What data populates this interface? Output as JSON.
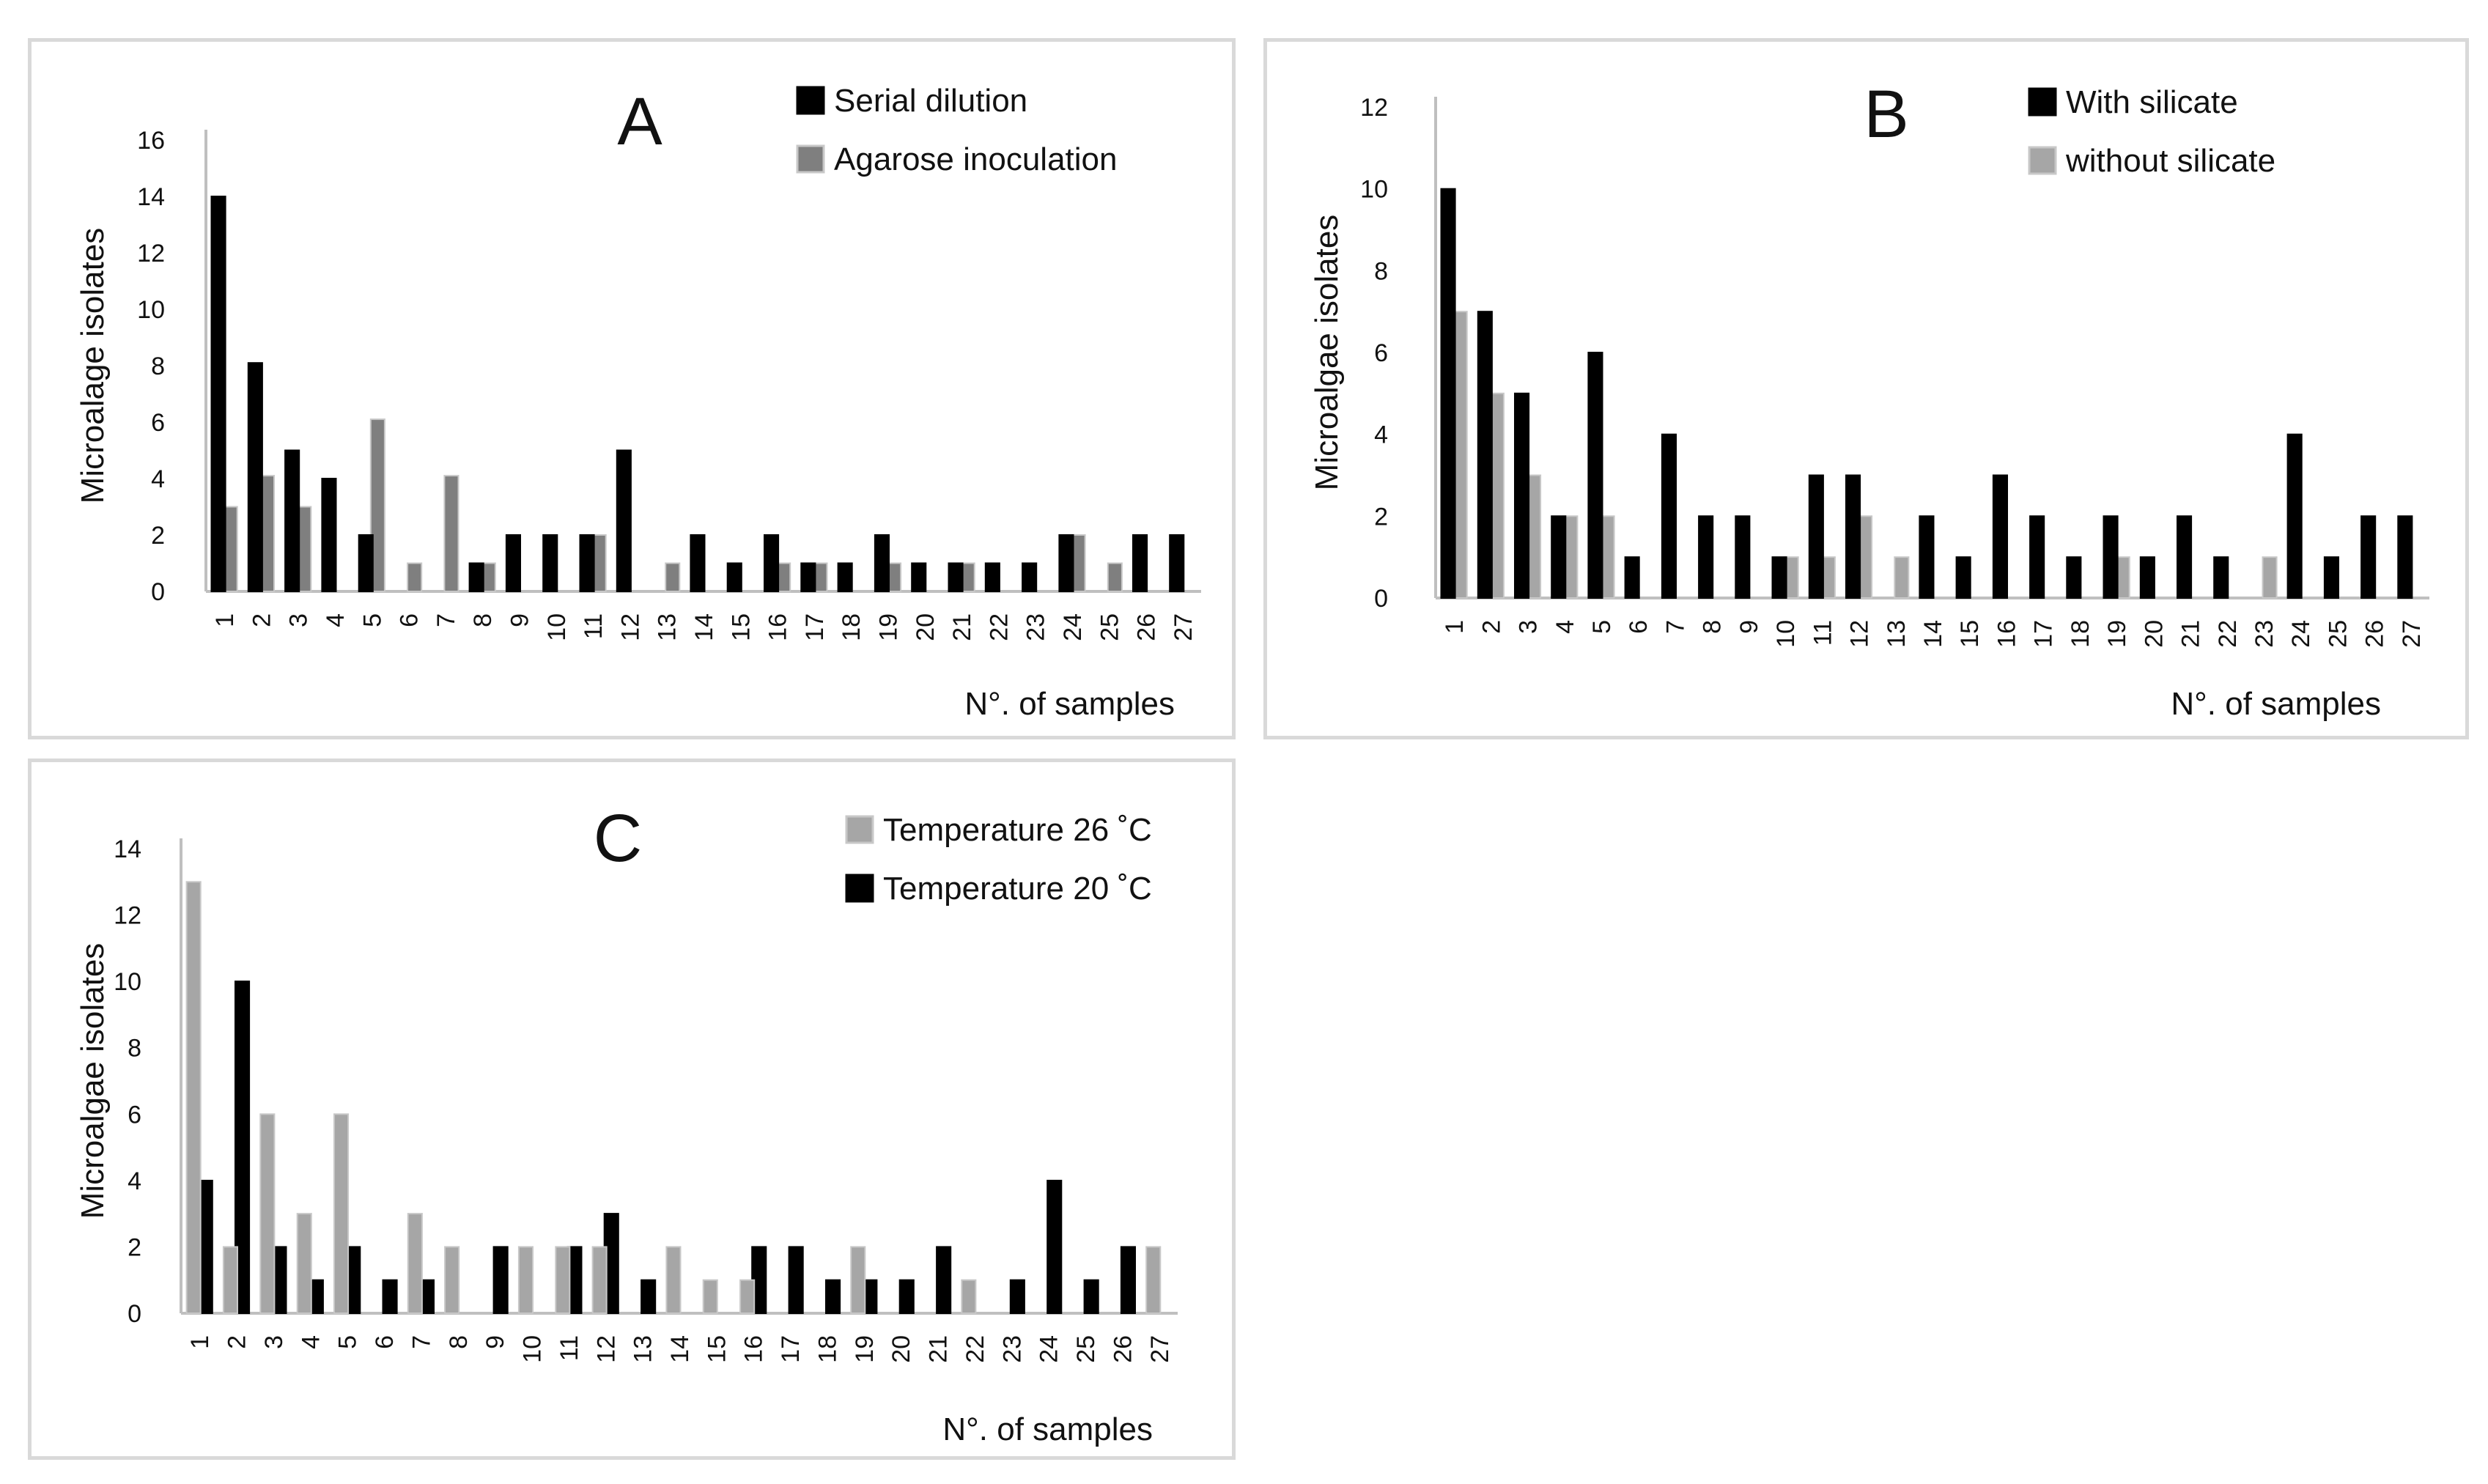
{
  "chart_data": [
    {
      "type": "bar",
      "panel_letter": "A",
      "ylabel": "Microalage isolates",
      "xlabel": "N°. of samples",
      "ylim": [
        0,
        16
      ],
      "yticks": [
        0,
        2,
        4,
        6,
        8,
        10,
        12,
        14,
        16
      ],
      "categories": [
        "1",
        "2",
        "3",
        "4",
        "5",
        "6",
        "7",
        "8",
        "9",
        "10",
        "11",
        "12",
        "13",
        "14",
        "15",
        "16",
        "17",
        "18",
        "19",
        "20",
        "21",
        "22",
        "23",
        "24",
        "25",
        "26",
        "27"
      ],
      "legend_position": "top-right",
      "series": [
        {
          "name": "Serial dilution",
          "color": "#000000",
          "values": [
            14,
            8.1,
            5,
            4,
            2,
            0,
            0,
            1,
            2,
            2,
            2,
            5,
            0,
            2,
            1,
            2,
            1,
            1,
            2,
            1,
            1,
            1,
            1,
            2,
            0,
            2,
            2
          ]
        },
        {
          "name": "Agarose inoculation",
          "color": "#7f7f7f",
          "values": [
            3,
            4.1,
            3,
            0,
            6.1,
            1,
            4.1,
            1,
            0,
            0,
            2,
            0,
            1,
            0,
            0,
            1,
            1,
            0,
            1,
            0,
            1,
            0,
            0,
            2,
            1,
            0,
            0
          ]
        }
      ]
    },
    {
      "type": "bar",
      "panel_letter": "B",
      "ylabel": "Microalgae isolates",
      "xlabel": "N°. of samples",
      "ylim": [
        0,
        12
      ],
      "yticks": [
        0,
        2,
        4,
        6,
        8,
        10,
        12
      ],
      "categories": [
        "1",
        "2",
        "3",
        "4",
        "5",
        "6",
        "7",
        "8",
        "9",
        "10",
        "11",
        "12",
        "13",
        "14",
        "15",
        "16",
        "17",
        "18",
        "19",
        "20",
        "21",
        "22",
        "23",
        "24",
        "25",
        "26",
        "27"
      ],
      "legend_position": "top-right",
      "series": [
        {
          "name": "With silicate",
          "color": "#000000",
          "values": [
            10,
            7,
            5,
            2,
            6,
            1,
            4,
            2,
            2,
            1,
            3,
            3,
            0,
            2,
            1,
            3,
            2,
            1,
            2,
            1,
            2,
            1,
            0,
            4,
            1,
            2,
            2
          ]
        },
        {
          "name": "without silicate",
          "color": "#a6a6a6",
          "values": [
            7,
            5,
            3,
            2,
            2,
            0,
            0,
            0,
            0,
            1,
            1,
            2,
            1,
            0,
            0,
            0,
            0,
            0,
            1,
            0,
            0,
            0,
            1,
            0,
            0,
            0,
            0
          ]
        }
      ]
    },
    {
      "type": "bar",
      "panel_letter": "C",
      "ylabel": "Microalgae isolates",
      "xlabel": "N°. of samples",
      "ylim": [
        0,
        14
      ],
      "yticks": [
        0,
        2,
        4,
        6,
        8,
        10,
        12,
        14
      ],
      "categories": [
        "1",
        "2",
        "3",
        "4",
        "5",
        "6",
        "7",
        "8",
        "9",
        "10",
        "11",
        "12",
        "13",
        "14",
        "15",
        "16",
        "17",
        "18",
        "19",
        "20",
        "21",
        "22",
        "23",
        "24",
        "25",
        "26",
        "27"
      ],
      "legend_position": "top-right",
      "series": [
        {
          "name": "Temperature  26 ˚C",
          "color": "#a6a6a6",
          "values": [
            13,
            2,
            6,
            3,
            6,
            0,
            3,
            2,
            0,
            2,
            2,
            2,
            0,
            2,
            1,
            1,
            0,
            0,
            2,
            0,
            0,
            1,
            0,
            0,
            0,
            0,
            2
          ]
        },
        {
          "name": "Temperature  20 ˚C",
          "color": "#000000",
          "values": [
            4,
            10,
            2,
            1,
            2,
            1,
            1,
            0,
            2,
            0,
            2,
            3,
            1,
            0,
            0,
            2,
            2,
            1,
            1,
            1,
            2,
            0,
            1,
            4,
            1,
            2,
            0
          ]
        }
      ]
    }
  ]
}
